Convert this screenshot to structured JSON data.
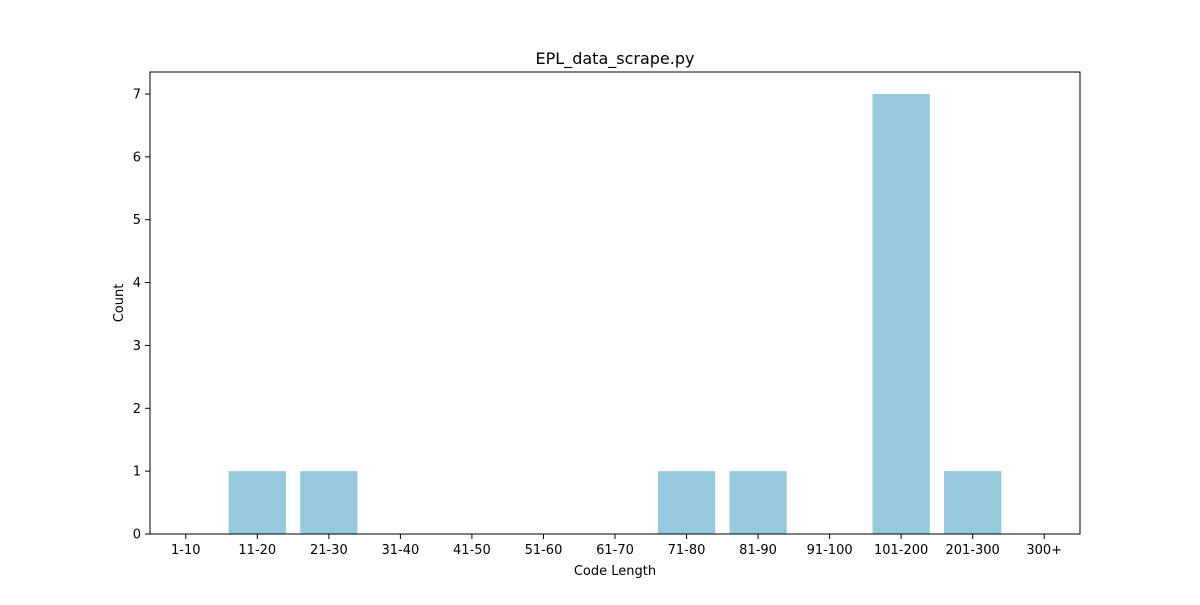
{
  "chart_data": {
    "type": "bar",
    "title": "EPL_data_scrape.py",
    "xlabel": "Code Length",
    "ylabel": "Count",
    "categories": [
      "1-10",
      "11-20",
      "21-30",
      "31-40",
      "41-50",
      "51-60",
      "61-70",
      "71-80",
      "81-90",
      "91-100",
      "101-200",
      "201-300",
      "300+"
    ],
    "values": [
      0,
      1,
      1,
      0,
      0,
      0,
      0,
      1,
      1,
      0,
      7,
      1,
      0
    ],
    "ylim": [
      0,
      7.35
    ],
    "yticks": [
      "0",
      "1",
      "2",
      "3",
      "4",
      "5",
      "6",
      "7"
    ],
    "grid": false,
    "legend": "none",
    "bar_color": "#96c9dc"
  }
}
